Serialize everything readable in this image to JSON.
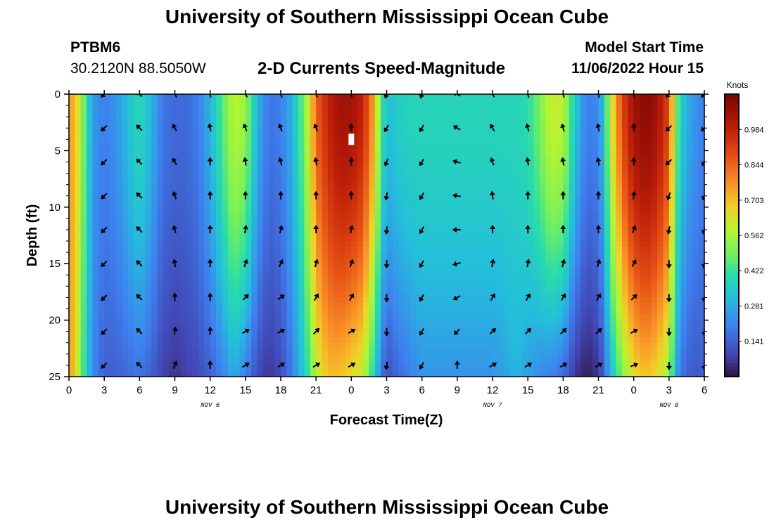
{
  "header": {
    "title": "University of Southern Mississippi Ocean Cube",
    "station_id": "PTBM6",
    "coordinates": "30.2120N  88.5050W",
    "product": "2-D Currents Speed-Magnitude",
    "model_start_label": "Model Start Time",
    "model_start_value": "11/06/2022 Hour 15"
  },
  "footer": {
    "title": "University of Southern Mississippi Ocean Cube"
  },
  "chart_data": {
    "type": "heatmap",
    "title": "2-D Currents Speed-Magnitude",
    "xlabel": "Forecast Time(Z)",
    "ylabel": "Depth (ft)",
    "x_range": [
      0,
      54
    ],
    "y_range": [
      0,
      25
    ],
    "y_inverted": true,
    "x_ticks": [
      0,
      3,
      6,
      9,
      12,
      15,
      18,
      21,
      24,
      27,
      30,
      33,
      36,
      39,
      42,
      45,
      48,
      51,
      54
    ],
    "x_tick_labels": [
      "0",
      "3",
      "6",
      "9",
      "12",
      "15",
      "18",
      "21",
      "0",
      "3",
      "6",
      "9",
      "12",
      "15",
      "18",
      "21",
      "0",
      "3",
      "6"
    ],
    "y_ticks": [
      0,
      5,
      10,
      15,
      20,
      25
    ],
    "y_tick_labels": [
      "0",
      "5",
      "10",
      "15",
      "20",
      "25"
    ],
    "date_labels": [
      {
        "hour": 12,
        "text": "NOV 6"
      },
      {
        "hour": 36,
        "text": "NOV 7"
      },
      {
        "hour": 51,
        "text": "NOV 8"
      }
    ],
    "colorbar": {
      "title": "Knots",
      "range": [
        0,
        1.125
      ],
      "ticks": [
        0.141,
        0.281,
        0.422,
        0.562,
        0.703,
        0.844,
        0.984
      ],
      "tick_labels": [
        "0.141",
        "0.281",
        "0.422",
        "0.562",
        "0.703",
        "0.844",
        "0.984"
      ]
    },
    "speed_profile_knots": {
      "hours": [
        0,
        0.5,
        1,
        1.5,
        2,
        3,
        4,
        5,
        6,
        7,
        8,
        9,
        10,
        11,
        12,
        13,
        14,
        15,
        16,
        17,
        18,
        19,
        20,
        20.5,
        21,
        22,
        23,
        24,
        25,
        26,
        26.5,
        27,
        28,
        29,
        30,
        31,
        32,
        33,
        34,
        35,
        36,
        37,
        38,
        39,
        40,
        41,
        42,
        43,
        44,
        45,
        45.5,
        46,
        47,
        48,
        49,
        50,
        51,
        51.5,
        52,
        53,
        54
      ],
      "surface": [
        0.75,
        0.72,
        0.58,
        0.4,
        0.25,
        0.2,
        0.24,
        0.32,
        0.4,
        0.3,
        0.18,
        0.16,
        0.16,
        0.2,
        0.3,
        0.45,
        0.6,
        0.55,
        0.3,
        0.18,
        0.2,
        0.3,
        0.5,
        0.65,
        0.85,
        0.98,
        1.05,
        1.05,
        0.98,
        0.72,
        0.45,
        0.32,
        0.36,
        0.38,
        0.38,
        0.38,
        0.38,
        0.38,
        0.38,
        0.38,
        0.38,
        0.38,
        0.38,
        0.4,
        0.5,
        0.62,
        0.6,
        0.35,
        0.2,
        0.22,
        0.35,
        0.6,
        0.9,
        1.05,
        1.1,
        1.05,
        0.9,
        0.55,
        0.35,
        0.25,
        0.2
      ],
      "bottom": [
        0.75,
        0.7,
        0.5,
        0.35,
        0.22,
        0.14,
        0.14,
        0.16,
        0.18,
        0.14,
        0.08,
        0.06,
        0.08,
        0.1,
        0.14,
        0.2,
        0.28,
        0.2,
        0.1,
        0.06,
        0.1,
        0.2,
        0.35,
        0.45,
        0.6,
        0.7,
        0.7,
        0.65,
        0.6,
        0.35,
        0.2,
        0.1,
        0.16,
        0.2,
        0.24,
        0.24,
        0.24,
        0.24,
        0.24,
        0.24,
        0.24,
        0.26,
        0.3,
        0.26,
        0.22,
        0.2,
        0.16,
        0.06,
        0.02,
        0.06,
        0.15,
        0.3,
        0.5,
        0.65,
        0.7,
        0.65,
        0.55,
        0.3,
        0.18,
        0.12,
        0.14
      ]
    },
    "current_vectors": {
      "hours": [
        3,
        6,
        9,
        12,
        15,
        18,
        21,
        24,
        27,
        30,
        33,
        36,
        39,
        42,
        45,
        48,
        51,
        54
      ],
      "depths_ft": [
        0,
        3,
        6,
        9,
        12,
        15,
        18,
        21,
        24
      ],
      "direction_deg": [
        [
          -135,
          -135,
          -135,
          -135,
          -135,
          -135,
          -135,
          -135,
          -135
        ],
        [
          -45,
          -45,
          -45,
          -45,
          -45,
          -45,
          -45,
          -45,
          -45
        ],
        [
          -30,
          -30,
          -30,
          -20,
          -15,
          -10,
          0,
          10,
          20
        ],
        [
          -10,
          -10,
          0,
          0,
          0,
          0,
          0,
          0,
          0
        ],
        [
          -30,
          -20,
          -10,
          0,
          10,
          20,
          45,
          60,
          60
        ],
        [
          -20,
          -20,
          -15,
          0,
          15,
          25,
          55,
          60,
          60
        ],
        [
          -20,
          -20,
          -10,
          0,
          0,
          15,
          30,
          45,
          60
        ],
        [
          -10,
          0,
          0,
          0,
          10,
          20,
          30,
          60,
          60
        ],
        [
          -160,
          -150,
          -160,
          -170,
          -175,
          -180,
          -180,
          -180,
          -170
        ],
        [
          -160,
          -150,
          -150,
          -150,
          -150,
          -150,
          -150,
          -150,
          -150
        ],
        [
          -60,
          -60,
          -75,
          -80,
          -90,
          -105,
          -120,
          -135,
          0
        ],
        [
          -30,
          -30,
          -20,
          -10,
          0,
          10,
          30,
          45,
          60
        ],
        [
          -15,
          -15,
          -10,
          0,
          0,
          10,
          30,
          45,
          60
        ],
        [
          -15,
          -15,
          -10,
          0,
          0,
          15,
          30,
          45,
          60
        ],
        [
          -10,
          -10,
          -10,
          0,
          0,
          15,
          30,
          45,
          60
        ],
        [
          -10,
          0,
          0,
          10,
          20,
          30,
          45,
          60,
          70
        ],
        [
          -135,
          -135,
          -135,
          -160,
          -170,
          -180,
          -180,
          -180,
          -180
        ],
        [
          -135,
          -135,
          -150,
          -160,
          -165,
          -170,
          -175,
          -180,
          -180
        ]
      ]
    },
    "marker_hour": 24,
    "marker_depth_ft": 4
  }
}
